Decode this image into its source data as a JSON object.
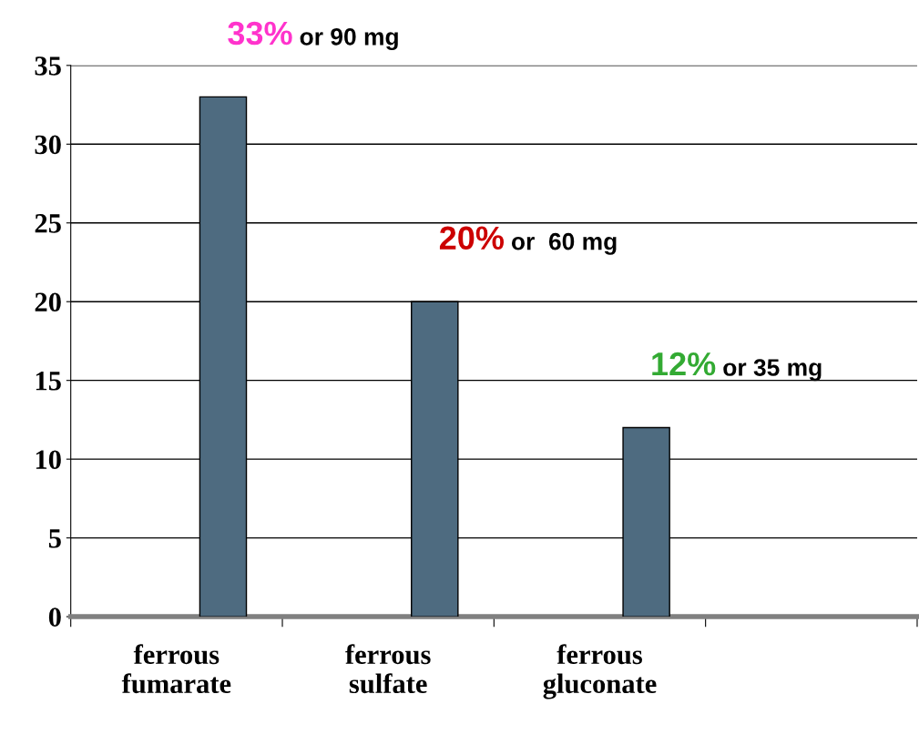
{
  "chart_data": {
    "type": "bar",
    "categories": [
      "ferrous\nfumarate",
      "ferrous\nsulfate",
      "ferrous\ngluconate",
      null
    ],
    "values": [
      33,
      20,
      12,
      null
    ],
    "color": "#4e6b80",
    "value_labels": [
      "33%",
      "20%",
      "12%",
      null
    ],
    "annotations": [
      "or 90 mg",
      "or  60 mg",
      "or 35 mg"
    ],
    "ylim": [
      0,
      35
    ],
    "yticks": [
      0,
      5,
      10,
      15,
      20,
      25,
      30,
      35
    ],
    "grid": "y",
    "legend": false
  }
}
